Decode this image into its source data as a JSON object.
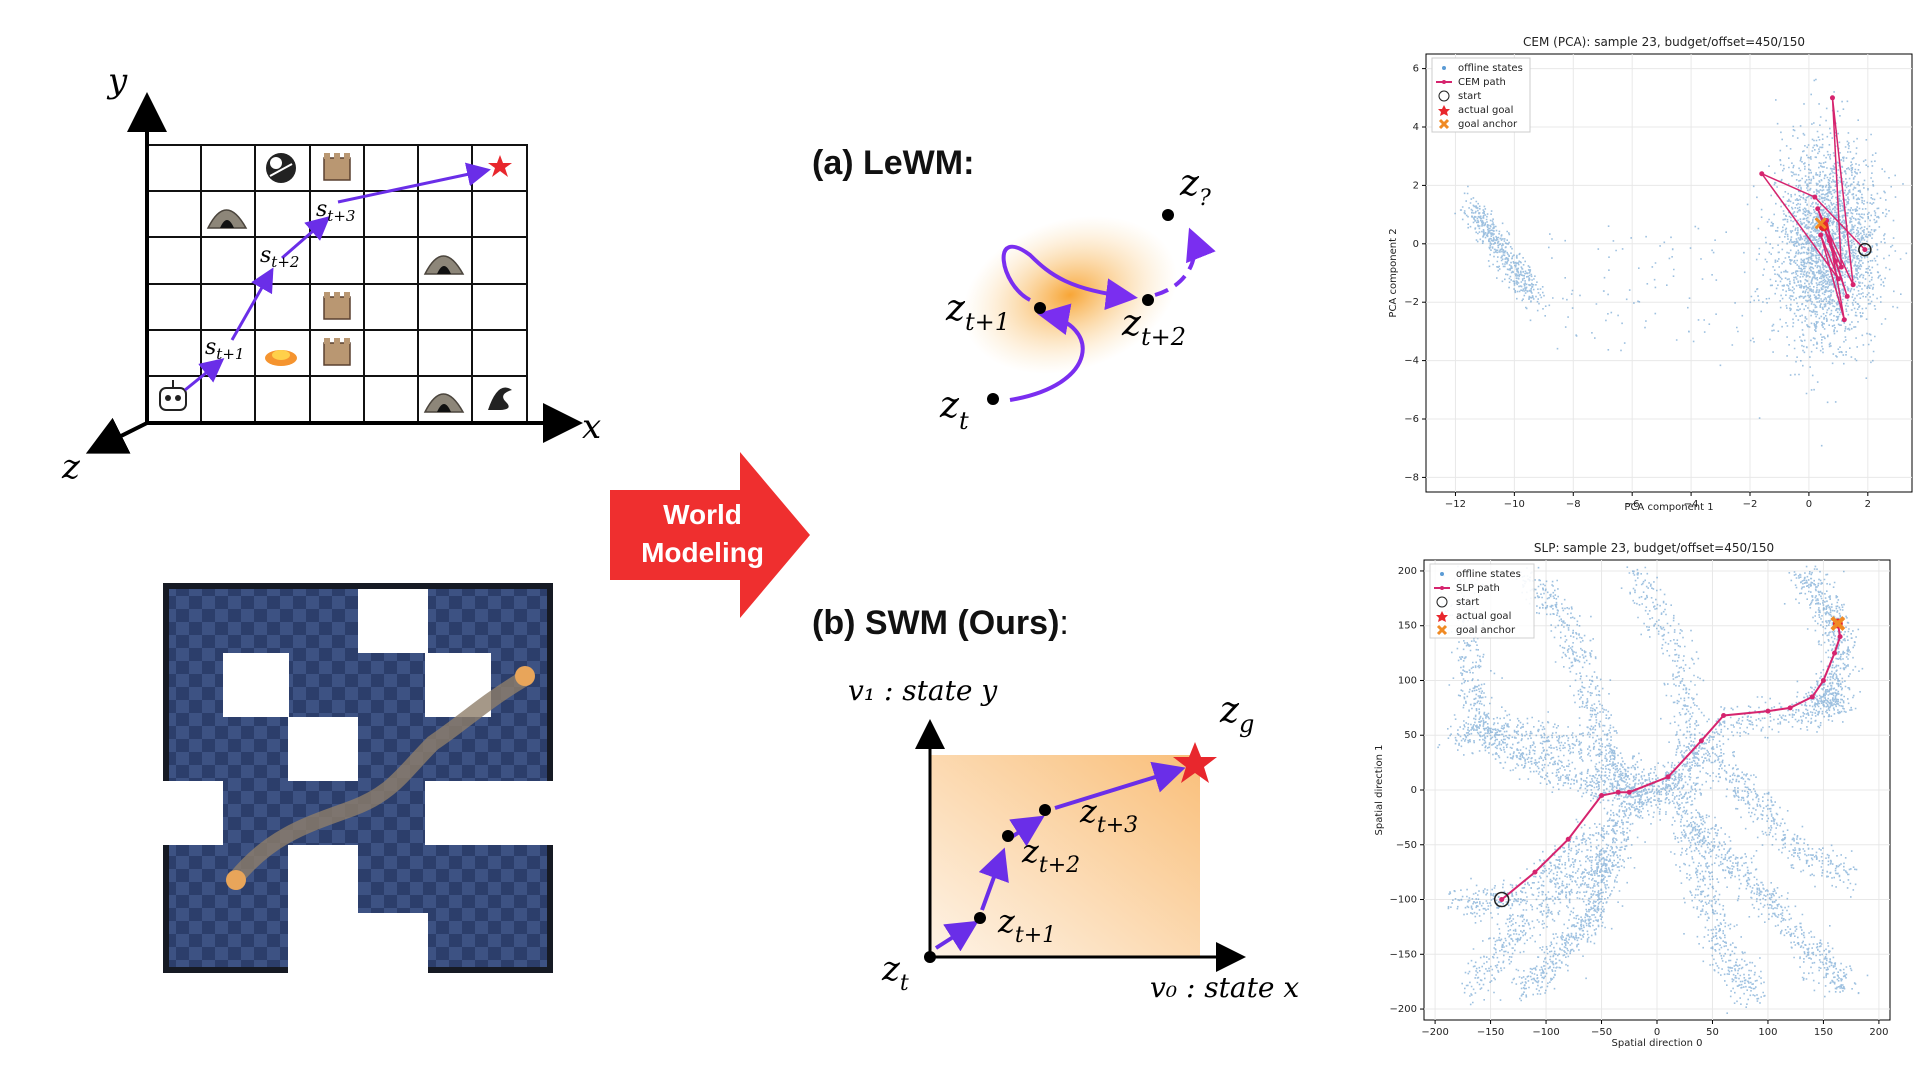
{
  "grid": {
    "axis_y": "y",
    "axis_x": "x",
    "axis_z": "z",
    "states": [
      "s",
      "t+1",
      "t+2",
      "t+3"
    ]
  },
  "arrow": {
    "line1": "World",
    "line2": "Modeling",
    "color": "#ef2f2f"
  },
  "lewm": {
    "heading": "(a) LeWM:",
    "labels": {
      "zq_base": "z",
      "zq_sub": "?",
      "z_t1_sub": "t+1",
      "z_t2_sub": "t+2",
      "z_t_sub": "t",
      "z": "z"
    }
  },
  "swm": {
    "heading_bold": "(b) SWM (Ours)",
    "heading_colon": ":",
    "v1_label": "v₁ : state y",
    "v0_label": "v₀ : state x",
    "zg_base": "z",
    "zg_sub": "g",
    "subs": [
      "t",
      "t+1",
      "t+2",
      "t+3"
    ]
  },
  "plot_cem": {
    "title": "CEM (PCA): sample 23, budget/offset=450/150",
    "xlabel": "PCA component 1",
    "ylabel": "PCA component 2",
    "xticks": [
      "−12",
      "−10",
      "−8",
      "−6",
      "−4",
      "−2",
      "0",
      "2"
    ],
    "yticks": [
      "6",
      "4",
      "2",
      "0",
      "−2",
      "−4",
      "−6",
      "−8"
    ],
    "legend": [
      "offline states",
      "CEM path",
      "start",
      "actual goal",
      "goal anchor"
    ]
  },
  "plot_slp": {
    "title": "SLP: sample 23, budget/offset=450/150",
    "xlabel": "Spatial direction 0",
    "ylabel": "Spatial direction 1",
    "xticks": [
      "−200",
      "−150",
      "−100",
      "−50",
      "0",
      "50",
      "100",
      "150",
      "200"
    ],
    "yticks": [
      "200",
      "150",
      "100",
      "50",
      "0",
      "−50",
      "−100",
      "−150",
      "−200"
    ],
    "legend": [
      "offline states",
      "SLP path",
      "start",
      "actual goal",
      "goal anchor"
    ]
  },
  "chart_data": [
    {
      "type": "scatter",
      "title": "CEM (PCA): sample 23, budget/offset=450/150",
      "xlabel": "PCA component 1",
      "ylabel": "PCA component 2",
      "xlim": [
        -13,
        3.5
      ],
      "ylim": [
        -8.5,
        6.5
      ],
      "series": [
        {
          "name": "CEM path",
          "x": [
            1.9,
            0.2,
            -1.6,
            1.0,
            0.4,
            1.2,
            0.6,
            0.9,
            0.3,
            1.5,
            0.8,
            1.1,
            0.5,
            1.3,
            0.7
          ],
          "y": [
            -0.2,
            1.6,
            2.4,
            -1.2,
            0.3,
            -2.6,
            0.8,
            -0.6,
            1.2,
            -1.4,
            5.0,
            -0.8,
            0.6,
            -1.8,
            0.1
          ]
        },
        {
          "name": "start",
          "x": [
            1.9
          ],
          "y": [
            -0.2
          ]
        },
        {
          "name": "actual goal",
          "x": [
            0.5
          ],
          "y": [
            0.6
          ]
        },
        {
          "name": "goal anchor",
          "x": [
            0.4
          ],
          "y": [
            0.7
          ]
        }
      ]
    },
    {
      "type": "scatter",
      "title": "SLP: sample 23, budget/offset=450/150",
      "xlabel": "Spatial direction 0",
      "ylabel": "Spatial direction 1",
      "xlim": [
        -210,
        210
      ],
      "ylim": [
        -210,
        210
      ],
      "series": [
        {
          "name": "SLP path",
          "x": [
            -140,
            -110,
            -80,
            -50,
            -35,
            -25,
            10,
            40,
            60,
            100,
            120,
            140,
            150,
            160,
            165,
            163
          ],
          "y": [
            -100,
            -75,
            -45,
            -5,
            -2,
            -2,
            12,
            45,
            68,
            72,
            75,
            85,
            100,
            125,
            140,
            152
          ]
        },
        {
          "name": "start",
          "x": [
            -140
          ],
          "y": [
            -100
          ]
        },
        {
          "name": "actual goal",
          "x": [
            163
          ],
          "y": [
            152
          ]
        },
        {
          "name": "goal anchor",
          "x": [
            163
          ],
          "y": [
            152
          ]
        }
      ]
    }
  ]
}
